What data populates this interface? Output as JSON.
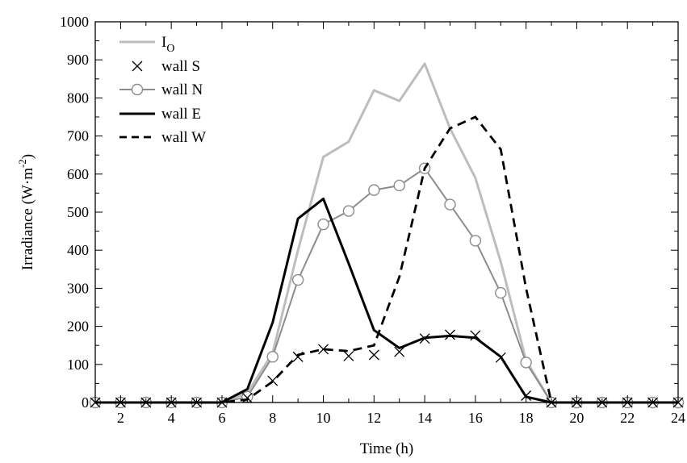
{
  "chart_data": {
    "type": "line",
    "title": "",
    "xlabel": "Time (h)",
    "ylabel": {
      "main": "Irradiance (W·m",
      "sup": "-2",
      "close": ")"
    },
    "xlim": [
      1,
      24
    ],
    "ylim": [
      0,
      1000
    ],
    "xticks": [
      2,
      4,
      6,
      8,
      10,
      12,
      14,
      16,
      18,
      20,
      22,
      24
    ],
    "yticks": [
      0,
      100,
      200,
      300,
      400,
      500,
      600,
      700,
      800,
      900,
      1000
    ],
    "grid": false,
    "legend_position": "top-left",
    "colors": {
      "io": "#bdbdbd",
      "s": "#000000",
      "n": "#8c8c8c",
      "e": "#000000",
      "w": "#000000"
    },
    "series": [
      {
        "key": "io",
        "name": "I",
        "name_sub": "O",
        "style": "solid-thick-light",
        "x": [
          1,
          2,
          3,
          4,
          5,
          6,
          7,
          8,
          9,
          10,
          11,
          12,
          13,
          14,
          15,
          16,
          17,
          18,
          19,
          20,
          21,
          22,
          23,
          24
        ],
        "values": [
          0,
          0,
          0,
          0,
          0,
          0,
          25,
          130,
          400,
          645,
          685,
          820,
          792,
          890,
          720,
          590,
          370,
          110,
          0,
          0,
          0,
          0,
          0,
          0
        ]
      },
      {
        "key": "s",
        "name": "wall S",
        "style": "cross-markers",
        "x": [
          1,
          2,
          3,
          4,
          5,
          6,
          7,
          8,
          9,
          10,
          11,
          12,
          13,
          14,
          15,
          16,
          17,
          18,
          19,
          20,
          21,
          22,
          23,
          24
        ],
        "values": [
          0,
          0,
          0,
          0,
          0,
          0,
          12,
          57,
          120,
          140,
          122,
          125,
          133,
          168,
          178,
          176,
          118,
          18,
          0,
          0,
          0,
          0,
          0,
          0
        ]
      },
      {
        "key": "n",
        "name": "wall N",
        "style": "line-circle-markers",
        "x": [
          1,
          2,
          3,
          4,
          5,
          6,
          7,
          8,
          9,
          10,
          11,
          12,
          13,
          14,
          15,
          16,
          17,
          18,
          19,
          20,
          21,
          22,
          23,
          24
        ],
        "values": [
          0,
          0,
          0,
          0,
          0,
          0,
          15,
          120,
          322,
          468,
          503,
          558,
          570,
          615,
          520,
          425,
          288,
          105,
          0,
          0,
          0,
          0,
          0,
          0
        ]
      },
      {
        "key": "e",
        "name": "wall E",
        "style": "solid-black",
        "x": [
          1,
          2,
          3,
          4,
          5,
          6,
          7,
          8,
          9,
          10,
          11,
          12,
          13,
          14,
          15,
          16,
          17,
          18,
          19,
          20,
          21,
          22,
          23,
          24
        ],
        "values": [
          0,
          0,
          0,
          0,
          0,
          0,
          35,
          210,
          483,
          535,
          365,
          190,
          143,
          170,
          175,
          170,
          120,
          15,
          0,
          0,
          0,
          0,
          0,
          0
        ]
      },
      {
        "key": "w",
        "name": "wall W",
        "style": "dashed-black",
        "x": [
          1,
          2,
          3,
          4,
          5,
          6,
          7,
          8,
          9,
          10,
          11,
          12,
          13,
          14,
          15,
          16,
          17,
          18,
          19,
          20,
          21,
          22,
          23,
          24
        ],
        "values": [
          0,
          0,
          0,
          0,
          0,
          0,
          8,
          55,
          125,
          140,
          135,
          150,
          330,
          615,
          720,
          750,
          665,
          300,
          0,
          0,
          0,
          0,
          0,
          0
        ]
      }
    ]
  }
}
